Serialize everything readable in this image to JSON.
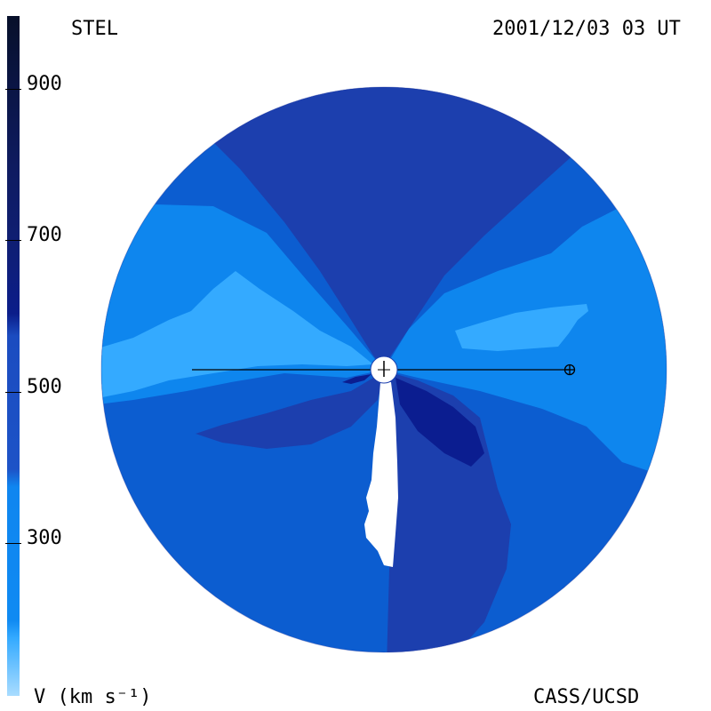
{
  "header": {
    "left_label": "STEL",
    "timestamp": "2001/12/03 03 UT"
  },
  "footer": {
    "units_label": "V (km s⁻¹)",
    "credit": "CASS/UCSD"
  },
  "colorbar": {
    "ticks": [
      "900",
      "700",
      "500",
      "300"
    ],
    "bands": [
      "#0a1030",
      "#0f1c66",
      "#0a1a8c",
      "#1d4fc4",
      "#0f86f0",
      "#32a8ff",
      "#a6d8ff"
    ]
  },
  "map": {
    "colors": {
      "fast": "#1c3fae",
      "very_fast": "#0b1d90",
      "medium": "#0c5dd0",
      "slow": "#0e86ee",
      "slower": "#34aaff",
      "sun": "#ffffff"
    },
    "symbols": [
      "sun-marker",
      "earth-marker"
    ]
  }
}
